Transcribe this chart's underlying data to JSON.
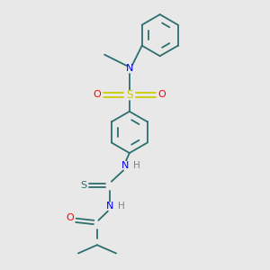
{
  "bg_color": "#e8e8e8",
  "bond_color": "#2d6e6e",
  "atom_colors": {
    "N": "#0000ff",
    "O": "#ff0000",
    "S_sulfonyl": "#cccc00",
    "S_thio": "#2d6e6e",
    "H": "#808080",
    "C": "#2d6e6e"
  },
  "figsize": [
    3.0,
    3.0
  ],
  "dpi": 100
}
